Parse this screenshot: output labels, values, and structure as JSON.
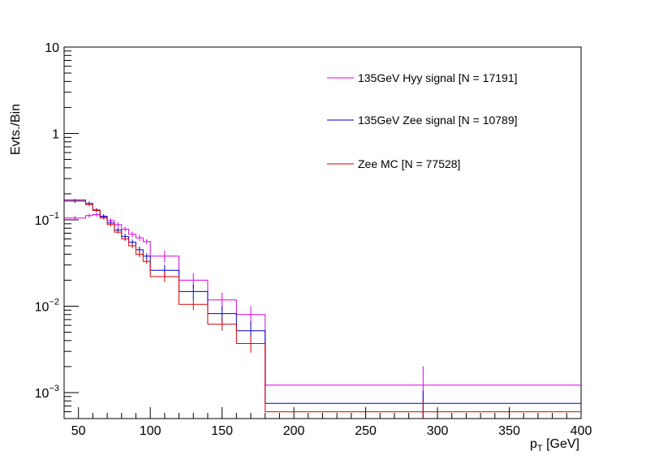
{
  "chart_data": {
    "type": "histogram",
    "xlabel_main": "p",
    "xlabel_sub": "T",
    "xlabel_unit": " [GeV]",
    "ylabel": "Evts./Bin",
    "xlim": [
      40,
      400
    ],
    "ylim": [
      0.0005,
      10
    ],
    "yscale": "log",
    "x_ticks": [
      50,
      100,
      150,
      200,
      250,
      300,
      350,
      400
    ],
    "y_ticks": [
      {
        "value": 10,
        "base": "10",
        "exp": ""
      },
      {
        "value": 1,
        "base": "1",
        "exp": ""
      },
      {
        "value": 0.1,
        "base": "10",
        "exp": "−1"
      },
      {
        "value": 0.01,
        "base": "10",
        "exp": "−2"
      },
      {
        "value": 0.001,
        "base": "10",
        "exp": "−3"
      }
    ],
    "bin_edges": [
      40,
      55,
      60,
      65,
      70,
      75,
      80,
      85,
      90,
      95,
      100,
      120,
      140,
      160,
      180,
      400
    ],
    "series": [
      {
        "name": "135GeV Hyy signal [N = 17191]",
        "color": "#e000e0",
        "values": [
          0.105,
          0.112,
          0.115,
          0.108,
          0.098,
          0.088,
          0.078,
          0.068,
          0.062,
          0.056,
          0.038,
          0.02,
          0.0118,
          0.008,
          0.00122
        ],
        "errors": [
          0.006,
          0.006,
          0.006,
          0.006,
          0.006,
          0.006,
          0.005,
          0.005,
          0.005,
          0.004,
          0.006,
          0.004,
          0.0025,
          0.002,
          0.0008
        ]
      },
      {
        "name": "135GeV Zee signal [N = 10789]",
        "color": "#0000cc",
        "values": [
          0.165,
          0.155,
          0.13,
          0.11,
          0.092,
          0.076,
          0.064,
          0.055,
          0.045,
          0.038,
          0.026,
          0.0148,
          0.0082,
          0.0052,
          0.00075
        ],
        "errors": [
          0.008,
          0.008,
          0.007,
          0.006,
          0.006,
          0.005,
          0.005,
          0.004,
          0.004,
          0.003,
          0.004,
          0.003,
          0.0018,
          0.0015,
          0.0003
        ]
      },
      {
        "name": "Zee MC [N = 77528]",
        "color": "#dd0000",
        "values": [
          0.17,
          0.15,
          0.128,
          0.105,
          0.088,
          0.072,
          0.06,
          0.05,
          0.04,
          0.033,
          0.022,
          0.0105,
          0.0062,
          0.0037,
          0.0006
        ],
        "errors": [
          0.005,
          0.005,
          0.004,
          0.004,
          0.004,
          0.003,
          0.003,
          0.003,
          0.003,
          0.002,
          0.003,
          0.0015,
          0.001,
          0.0008,
          0.0002
        ]
      }
    ]
  }
}
